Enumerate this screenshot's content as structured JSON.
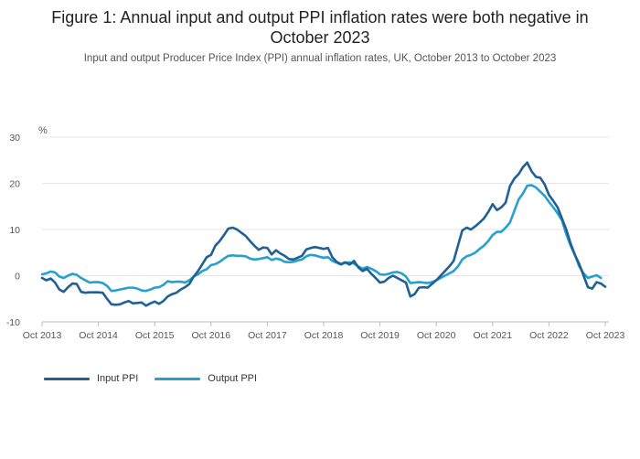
{
  "title": {
    "line1": "Figure 1: Annual input and output PPI inflation rates were both negative in",
    "line2": "October 2023"
  },
  "subtitle": "Input and output Producer Price Index (PPI) annual inflation rates, UK, October 2013 to October 2023",
  "colors": {
    "input": "#206095",
    "output": "#27A0CC",
    "grid": "#e6e6e6",
    "axis": "#bbbbbb"
  },
  "legend": {
    "input_label": "Input PPI",
    "output_label": "Output PPI"
  },
  "chart_data": {
    "type": "line",
    "ylabel": "%",
    "xlabel": "",
    "ylim": [
      -10,
      30
    ],
    "yticks": [
      -10,
      0,
      10,
      20,
      30
    ],
    "grid": true,
    "legend_position": "bottom-left",
    "x_start": "Oct 2013",
    "x_end": "Oct 2023",
    "x_ticks": [
      "Oct 2013",
      "Oct 2014",
      "Oct 2015",
      "Oct 2016",
      "Oct 2017",
      "Oct 2018",
      "Oct 2019",
      "Oct 2020",
      "Oct 2021",
      "Oct 2022",
      "Oct 2023"
    ],
    "series": [
      {
        "name": "Input PPI",
        "values": [
          -0.5,
          -1.0,
          -0.6,
          -1.5,
          -3.0,
          -3.5,
          -2.5,
          -1.7,
          -1.8,
          -3.5,
          -3.7,
          -3.6,
          -3.6,
          -3.6,
          -3.7,
          -5.0,
          -6.2,
          -6.3,
          -6.2,
          -5.8,
          -5.5,
          -6.0,
          -5.9,
          -5.8,
          -6.5,
          -6.0,
          -5.6,
          -6.1,
          -5.5,
          -4.5,
          -4.0,
          -3.7,
          -3.0,
          -2.5,
          -1.8,
          -0.2,
          1.0,
          2.5,
          4.0,
          4.5,
          6.5,
          7.5,
          8.8,
          10.2,
          10.4,
          10.0,
          9.3,
          8.6,
          7.5,
          6.5,
          5.6,
          6.1,
          6.0,
          4.6,
          5.5,
          4.8,
          4.3,
          3.6,
          3.5,
          3.9,
          4.3,
          5.7,
          6.0,
          6.2,
          6.0,
          5.8,
          6.0,
          4.0,
          3.0,
          2.5,
          2.9,
          2.4,
          3.2,
          1.8,
          1.0,
          1.5,
          0.4,
          -0.5,
          -1.5,
          -1.3,
          -0.5,
          0.0,
          -0.5,
          -1.0,
          -1.5,
          -4.5,
          -4.0,
          -2.6,
          -2.5,
          -2.6,
          -1.8,
          -1.0,
          0.0,
          1.0,
          2.0,
          3.2,
          6.5,
          9.8,
          10.4,
          10.0,
          10.7,
          11.5,
          12.4,
          13.8,
          15.5,
          14.2,
          14.8,
          15.8,
          19.4,
          21.0,
          22.0,
          23.5,
          24.5,
          22.6,
          21.4,
          21.2,
          19.8,
          17.5,
          16.2,
          14.8,
          12.4,
          10.0,
          7.0,
          4.5,
          2.5,
          0.0,
          -2.5,
          -2.8,
          -1.4,
          -1.7,
          -2.4
        ]
      },
      {
        "name": "Output PPI",
        "values": [
          0.3,
          0.5,
          0.9,
          0.7,
          -0.2,
          -0.5,
          0.0,
          0.4,
          0.2,
          -0.5,
          -1.0,
          -1.5,
          -1.4,
          -1.4,
          -1.6,
          -2.2,
          -3.3,
          -3.2,
          -3.0,
          -2.8,
          -2.6,
          -2.6,
          -2.8,
          -3.2,
          -3.3,
          -3.0,
          -2.6,
          -2.5,
          -2.0,
          -1.2,
          -1.4,
          -1.3,
          -1.3,
          -1.5,
          -1.0,
          -0.2,
          0.3,
          1.0,
          1.4,
          2.3,
          2.5,
          3.0,
          3.7,
          4.3,
          4.4,
          4.3,
          4.3,
          4.2,
          3.7,
          3.5,
          3.6,
          3.8,
          4.0,
          3.4,
          3.7,
          3.5,
          3.0,
          2.9,
          3.0,
          3.3,
          3.5,
          4.2,
          4.5,
          4.4,
          4.1,
          3.9,
          4.0,
          3.2,
          2.8,
          2.4,
          2.8,
          2.9,
          2.6,
          2.0,
          1.5,
          1.9,
          1.5,
          1.0,
          0.3,
          0.2,
          0.4,
          0.7,
          0.8,
          0.5,
          -0.2,
          -1.6,
          -1.5,
          -1.4,
          -1.5,
          -1.6,
          -1.4,
          -1.0,
          -0.5,
          0.0,
          0.5,
          1.0,
          2.0,
          3.5,
          4.2,
          4.5,
          5.0,
          5.8,
          6.5,
          7.5,
          8.8,
          9.5,
          9.5,
          10.4,
          11.5,
          14.0,
          16.5,
          17.8,
          19.5,
          19.6,
          19.1,
          18.2,
          17.3,
          16.0,
          14.8,
          13.5,
          12.0,
          9.0,
          6.5,
          4.5,
          2.0,
          0.5,
          -0.5,
          -0.2,
          0.1,
          -0.5
        ]
      }
    ]
  }
}
